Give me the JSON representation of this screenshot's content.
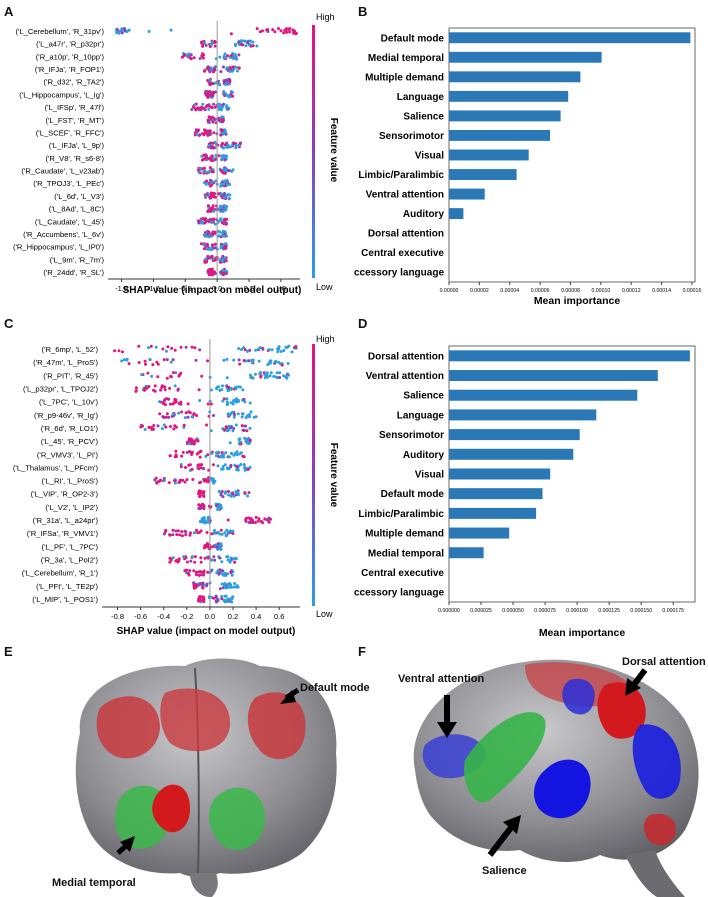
{
  "panels": {
    "A": {
      "letter": "A",
      "features": [
        "('L_Cerebellum', 'R_31pv')",
        "('L_a47r', 'R_p32pr')",
        "('R_a10p', 'R_10pp')",
        "('R_IFJa', 'R_FOP1')",
        "('R_d32', 'R_TA2')",
        "('L_Hippocampus', 'L_Ig')",
        "('L_IFSp', 'R_47l')",
        "('L_FST', 'R_MT')",
        "('L_SCEF', 'R_FFC')",
        "('L_IFJa', 'L_9p')",
        "('R_V8', 'R_s6-8')",
        "('R_Caudate', 'L_v23ab')",
        "('R_TPOJ3', 'L_PEc')",
        "('L_6d', 'L_V3')",
        "('L_8Ad', 'L_8C')",
        "('L_Caudate', 'L_45')",
        "('R_Accumbens', 'L_6v')",
        "('R_Hippocampus', 'L_IP0')",
        "('L_9m', 'R_7m')",
        "('R_24dd', 'R_SL')"
      ],
      "xlabel": "SHAP value (impact on model output)",
      "xrange": [
        -1.65,
        1.3
      ],
      "ticks": [
        "-1.5",
        "-1.0",
        "-0.5",
        "0.0",
        "0.5",
        "1.0"
      ],
      "tick_values": [
        -1.5,
        -1.0,
        -0.5,
        0.0,
        0.5,
        1.0
      ],
      "colorbar_high": "High",
      "colorbar_low": "Low",
      "colorbar_label": "Feature value"
    },
    "B": {
      "letter": "B",
      "xlabel": "Mean importance",
      "ticks": [
        "0.00000",
        "0.00002",
        "0.00004",
        "0.00006",
        "0.00008",
        "0.00010",
        "0.00012",
        "0.00014",
        "0.00016"
      ],
      "tick_values": [
        0,
        2e-05,
        4e-05,
        6e-05,
        8e-05,
        0.0001,
        0.00012,
        0.00014,
        0.00016
      ]
    },
    "C": {
      "letter": "C",
      "features": [
        "('R_6mp', 'L_52')",
        "('R_47m', 'L_ProS')",
        "('R_PIT', 'R_45')",
        "('L_p32pr', 'L_TPOJ2')",
        "('L_7PC', 'L_10v')",
        "('R_p9-46v', 'R_Ig')",
        "('R_6d', 'R_LO1')",
        "('L_45', 'R_PCV')",
        "('R_VMV3', 'L_PI')",
        "('L_Thalamus', 'L_PFcm')",
        "('L_RI', 'L_ProS')",
        "('L_VIP', 'R_OP2-3')",
        "('L_V2', 'L_IP2')",
        "('R_31a', 'L_a24pr')",
        "('R_IFSa', 'R_VMV1')",
        "('L_PF', 'L_7PC')",
        "('R_3a', 'L_PoI2')",
        "('L_Cerebellum', 'R_1')",
        "('L_PFt', 'L_TE2p')",
        "('L_MIP', 'L_POS1')"
      ],
      "xlabel": "SHAP value (impact on model output)",
      "xrange": [
        -0.9,
        0.78
      ],
      "ticks": [
        "-0.8",
        "-0.6",
        "-0.4",
        "-0.2",
        "0.0",
        "0.2",
        "0.4",
        "0.6"
      ],
      "tick_values": [
        -0.8,
        -0.6,
        -0.4,
        -0.2,
        0.0,
        0.2,
        0.4,
        0.6
      ],
      "colorbar_high": "High",
      "colorbar_low": "Low",
      "colorbar_label": "Feature value"
    },
    "D": {
      "letter": "D",
      "xlabel": "Mean importance",
      "ticks": [
        "0.000000",
        "0.000025",
        "0.000050",
        "0.000075",
        "0.000100",
        "0.000125",
        "0.000150",
        "0.000175"
      ],
      "tick_values": [
        0,
        2.5e-05,
        5e-05,
        7.5e-05,
        0.0001,
        0.000125,
        0.00015,
        0.000175
      ]
    },
    "E": {
      "letter": "E",
      "annotation_top": "Default mode",
      "annotation_bottom": "Medial temporal"
    },
    "F": {
      "letter": "F",
      "annotation_left": "Ventral attention",
      "annotation_right": "Dorsal attention",
      "annotation_bottom": "Salience"
    }
  },
  "colors": {
    "bar": "#2b78b6",
    "high": "#e8137a",
    "low": "#2a9fe3",
    "red_region": "#d0181c",
    "green_region": "#22b43a",
    "blue_region": "#1a1ee0"
  },
  "chart_data": [
    {
      "type": "bar",
      "orientation": "horizontal",
      "panel": "B",
      "categories": [
        "Default mode",
        "Medial temporal",
        "Multiple demand",
        "Language",
        "Salience",
        "Sensorimotor",
        "Visual",
        "Limbic/Paralimbic",
        "Ventral attention",
        "Auditory",
        "Dorsal attention",
        "Central executive",
        "Accessory language"
      ],
      "values": [
        0.000159,
        0.0001005,
        8.65e-05,
        7.85e-05,
        7.35e-05,
        6.65e-05,
        5.25e-05,
        4.45e-05,
        2.35e-05,
        9.5e-06,
        0,
        0,
        0
      ],
      "xlabel": "Mean importance",
      "xlim": [
        0,
        0.000162
      ]
    },
    {
      "type": "bar",
      "orientation": "horizontal",
      "panel": "D",
      "categories": [
        "Dorsal attention",
        "Ventral attention",
        "Salience",
        "Language",
        "Sensorimotor",
        "Auditory",
        "Visual",
        "Default mode",
        "Limbic/Paralimbic",
        "Multiple demand",
        "Medial temporal",
        "Central executive",
        "Accessory language"
      ],
      "values": [
        0.000188,
        0.000163,
        0.000147,
        0.000115,
        0.000102,
        9.7e-05,
        7.9e-05,
        7.3e-05,
        6.8e-05,
        4.7e-05,
        2.7e-05,
        0,
        0
      ],
      "xlabel": "Mean importance",
      "xlim": [
        0,
        0.000192
      ]
    },
    {
      "type": "scatter",
      "panel": "A",
      "title": "",
      "xlabel": "SHAP value (impact on model output)",
      "features": [
        "('L_Cerebellum', 'R_31pv')",
        "('L_a47r', 'R_p32pr')",
        "('R_a10p', 'R_10pp')",
        "('R_IFJa', 'R_FOP1')",
        "('R_d32', 'R_TA2')",
        "('L_Hippocampus', 'L_Ig')",
        "('L_IFSp', 'R_47l')",
        "('L_FST', 'R_MT')",
        "('L_SCEF', 'R_FFC')",
        "('L_IFJa', 'L_9p')",
        "('R_V8', 'R_s6-8')",
        "('R_Caudate', 'L_v23ab')",
        "('R_TPOJ3', 'L_PEc')",
        "('L_6d', 'L_V3')",
        "('L_8Ad', 'L_8C')",
        "('L_Caudate', 'L_45')",
        "('R_Accumbens', 'L_6v')",
        "('R_Hippocampus', 'L_IP0')",
        "('L_9m', 'R_7m')",
        "('R_24dd', 'R_SL')"
      ],
      "shap_ranges": [
        [
          -1.6,
          -1.35,
          0.6,
          1.25
        ],
        [
          -0.25,
          0.0,
          0.3,
          0.65
        ],
        [
          -0.55,
          -0.2,
          0.1,
          0.35
        ],
        [
          -0.2,
          0.0,
          0.15,
          0.35
        ],
        [
          -0.15,
          -0.05,
          0.1,
          0.2
        ],
        [
          -0.2,
          -0.05,
          0.1,
          0.25
        ],
        [
          -0.4,
          -0.1,
          0.05,
          0.2
        ],
        [
          -0.15,
          -0.05,
          0.05,
          0.1
        ],
        [
          -0.35,
          -0.1,
          0.05,
          0.15
        ],
        [
          -0.15,
          0.0,
          0.1,
          0.4
        ],
        [
          -0.25,
          -0.05,
          0.05,
          0.15
        ],
        [
          -0.3,
          -0.05,
          0.05,
          0.25
        ],
        [
          -0.2,
          -0.05,
          0.05,
          0.2
        ],
        [
          -0.2,
          -0.05,
          0.05,
          0.2
        ],
        [
          -0.15,
          -0.05,
          0.05,
          0.15
        ],
        [
          -0.3,
          -0.05,
          0.05,
          0.15
        ],
        [
          -0.2,
          -0.05,
          0.05,
          0.15
        ],
        [
          -0.25,
          -0.05,
          0.05,
          0.15
        ],
        [
          -0.2,
          -0.05,
          0.05,
          0.15
        ],
        [
          -0.15,
          -0.05,
          0.05,
          0.15
        ]
      ],
      "xlim": [
        -1.65,
        1.3
      ]
    },
    {
      "type": "scatter",
      "panel": "C",
      "title": "",
      "xlabel": "SHAP value (impact on model output)",
      "features": [
        "('R_6mp', 'L_52')",
        "('R_47m', 'L_ProS')",
        "('R_PIT', 'R_45')",
        "('L_p32pr', 'L_TPOJ2')",
        "('L_7PC', 'L_10v')",
        "('R_p9-46v', 'R_Ig')",
        "('R_6d', 'R_LO1')",
        "('L_45', 'R_PCV')",
        "('R_VMV3', 'L_PI')",
        "('L_Thalamus', 'L_PFcm')",
        "('L_RI', 'L_ProS')",
        "('L_VIP', 'R_OP2-3')",
        "('L_V2', 'L_IP2')",
        "('R_31a', 'L_a24pr')",
        "('R_IFSa', 'R_VMV1')",
        "('L_PF', 'L_7PC')",
        "('R_3a', 'L_PoI2')",
        "('L_Cerebellum', 'R_1')",
        "('L_PFt', 'L_TE2p')",
        "('L_MIP', 'L_POS1')"
      ],
      "shap_ranges": [
        [
          -0.85,
          0.0,
          0.25,
          0.75
        ],
        [
          -0.85,
          -0.3,
          0.25,
          0.7
        ],
        [
          -0.65,
          -0.25,
          0.35,
          0.7
        ],
        [
          -0.65,
          -0.3,
          0.05,
          0.3
        ],
        [
          -0.45,
          -0.25,
          0.1,
          0.35
        ],
        [
          -0.45,
          -0.1,
          0.15,
          0.4
        ],
        [
          -0.6,
          -0.2,
          0.1,
          0.35
        ],
        [
          -0.2,
          -0.1,
          0.25,
          0.35
        ],
        [
          -0.35,
          -0.1,
          0.05,
          0.3
        ],
        [
          -0.25,
          -0.05,
          0.1,
          0.35
        ],
        [
          -0.5,
          -0.2,
          -0.05,
          0.05
        ],
        [
          -0.1,
          -0.05,
          0.05,
          0.35
        ],
        [
          -0.1,
          -0.05,
          0.05,
          0.1
        ],
        [
          -0.1,
          0.0,
          0.3,
          0.55
        ],
        [
          -0.4,
          -0.1,
          0.0,
          0.2
        ],
        [
          -0.05,
          0.0,
          0.05,
          0.1
        ],
        [
          -0.35,
          -0.05,
          0.05,
          0.25
        ],
        [
          -0.25,
          -0.05,
          0.05,
          0.2
        ],
        [
          -0.15,
          -0.05,
          0.1,
          0.25
        ],
        [
          -0.1,
          -0.05,
          0.05,
          0.2
        ]
      ],
      "xlim": [
        -0.9,
        0.78
      ]
    }
  ]
}
